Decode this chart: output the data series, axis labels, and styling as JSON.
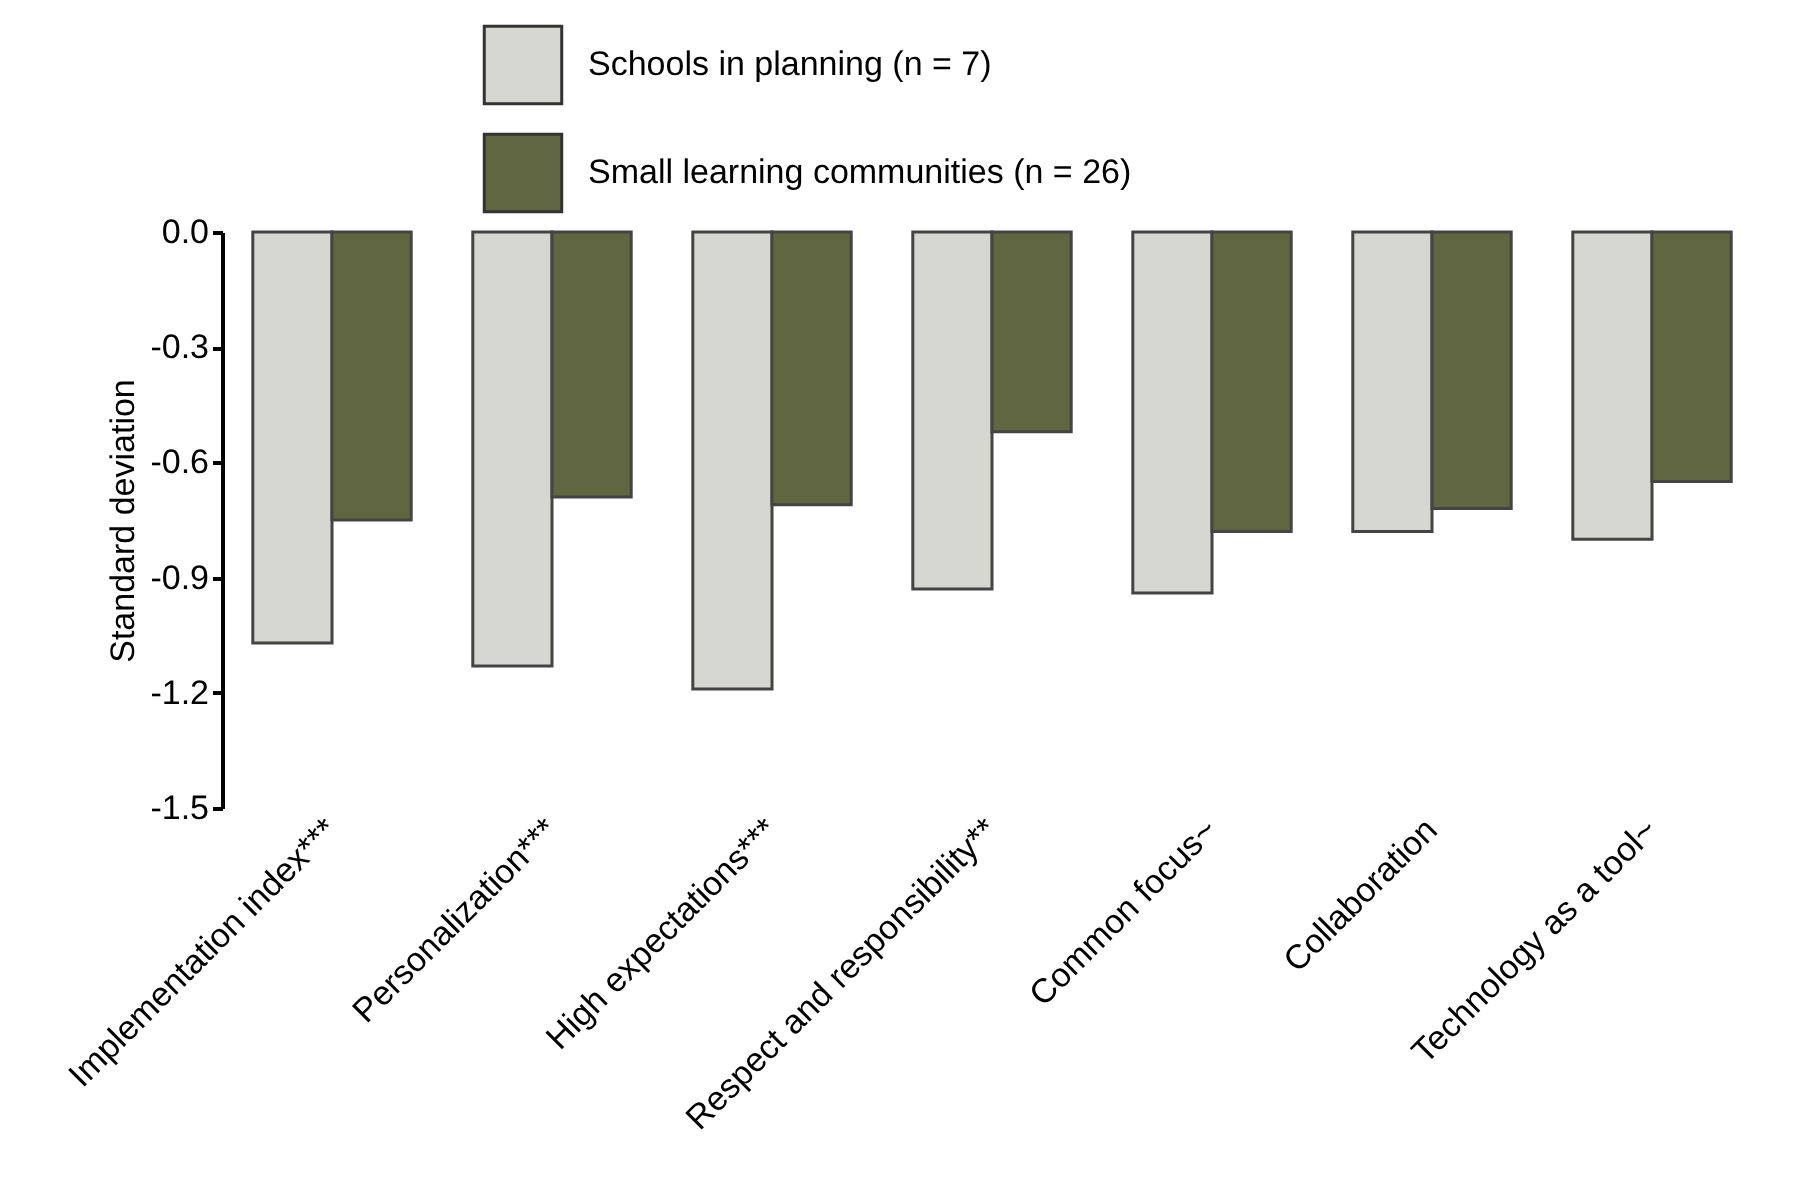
{
  "chart_data": {
    "type": "bar",
    "ylabel": "Standard deviation",
    "categories": [
      "Implementation index***",
      "Personalization***",
      "High expectations***",
      "Respect and responsibility**",
      "Common focus~",
      "Collaboration",
      "Technology as a tool~"
    ],
    "series": [
      {
        "name": "Schools in planning (n = 7)",
        "color": "#d6d7d0",
        "values": [
          -1.07,
          -1.13,
          -1.19,
          -0.93,
          -0.94,
          -0.78,
          -0.8
        ]
      },
      {
        "name": "Small learning communities (n = 26)",
        "color": "#5f6640",
        "values": [
          -0.75,
          -0.69,
          -0.71,
          -0.52,
          -0.78,
          -0.72,
          -0.65
        ]
      }
    ],
    "ylim": [
      -1.5,
      0
    ],
    "yticks": [
      {
        "value": 0,
        "label": "0.0"
      },
      -0.3,
      -0.6,
      -0.9,
      -1.2,
      -1.5
    ],
    "legend": "top",
    "grid": false
  }
}
